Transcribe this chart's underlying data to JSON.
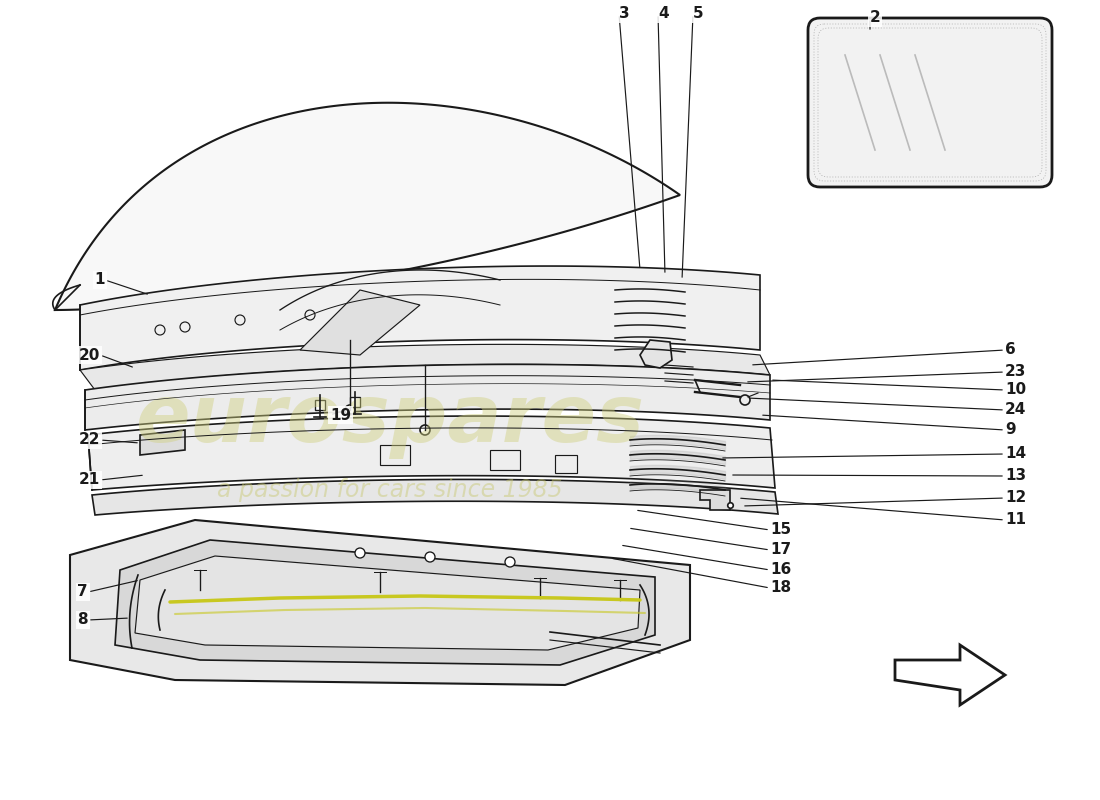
{
  "bg_color": "#ffffff",
  "line_color": "#1a1a1a",
  "wm_color1": "#d0d080",
  "wm_color2": "#c8c870",
  "label_fontsize": 11,
  "lw": 1.2,
  "seal_color": "#c8c820"
}
